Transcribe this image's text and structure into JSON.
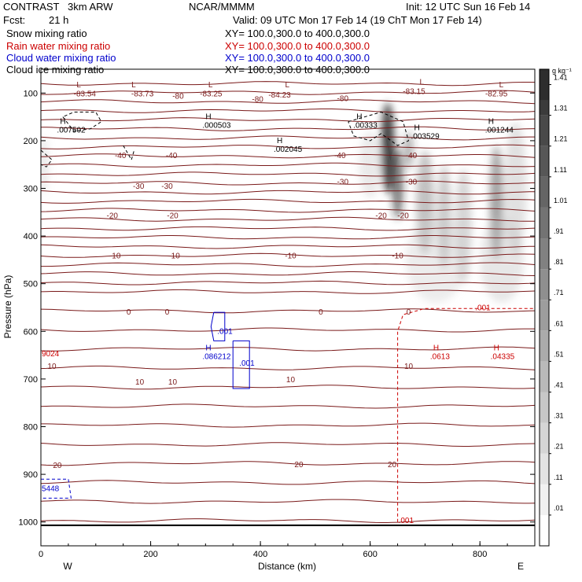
{
  "header": {
    "model": "CONTRAST",
    "model_res": "3km ARW",
    "center": "NCAR/MMMM",
    "init": "Init: 12 UTC Sun 16 Feb 14",
    "fcst_label": "Fcst:",
    "fcst_value": "21 h",
    "valid": "Valid: 09 UTC Mon 17 Feb 14 (19 ChT Mon 17 Feb 14)",
    "fields": [
      {
        "name": "Snow mixing ratio",
        "color": "#000000",
        "xy": "XY=  100.0,300.0 to 400.0,300.0"
      },
      {
        "name": "Rain water mixing ratio",
        "color": "#cc0000",
        "xy": "XY=  100.0,300.0 to 400.0,300.0"
      },
      {
        "name": "Cloud water mixing ratio",
        "color": "#0000cc",
        "xy": "XY=  100.0,300.0 to 400.0,300.0"
      },
      {
        "name": "Cloud ice mixing ratio",
        "color": "#000000",
        "xy": "XY=  100.0,300.0 to 400.0,300.0"
      }
    ]
  },
  "chart_data": {
    "type": "heatmap",
    "xlabel": "Distance (km)",
    "ylabel": "Pressure (hPa)",
    "xlim": [
      0,
      900
    ],
    "ylim": [
      1050,
      50
    ],
    "x_ticks": [
      0,
      200,
      400,
      600,
      800
    ],
    "y_ticks": [
      100,
      200,
      300,
      400,
      500,
      600,
      700,
      800,
      900,
      1000
    ],
    "side_labels": {
      "left": "W",
      "right": "E"
    },
    "colorbar": {
      "unit": "g kg⁻¹",
      "levels": [
        0.01,
        0.11,
        0.21,
        0.31,
        0.41,
        0.51,
        0.61,
        0.71,
        0.81,
        0.91,
        1.01,
        1.11,
        1.21,
        1.31,
        1.41
      ],
      "labels": [
        ".01",
        ".11",
        ".21",
        ".31",
        ".41",
        ".51",
        ".61",
        ".71",
        ".81",
        ".91",
        "1.01",
        "1.11",
        "1.21",
        "1.31",
        "1.41"
      ]
    },
    "colors": {
      "temperature": "#7a1a1a",
      "snow": "#000000",
      "rain": "#cc0000",
      "cloud_water": "#0000cc"
    },
    "temperature_contours": [
      {
        "p": 100,
        "label": "-83.54",
        "x": 80
      },
      {
        "p": 100,
        "label": "-83.73",
        "x": 185
      },
      {
        "p": 105,
        "label": "-80",
        "x": 250
      },
      {
        "p": 100,
        "label": "-83.25",
        "x": 310
      },
      {
        "p": 112,
        "label": "-80",
        "x": 395
      },
      {
        "p": 103,
        "label": "-84.23",
        "x": 435
      },
      {
        "p": 110,
        "label": "-80",
        "x": 550
      },
      {
        "p": 95,
        "label": "-83.15",
        "x": 680
      },
      {
        "p": 100,
        "label": "-82.95",
        "x": 830
      },
      {
        "p": 230,
        "label": "-40",
        "x": 145
      },
      {
        "p": 230,
        "label": "-40",
        "x": 238
      },
      {
        "p": 230,
        "label": "-40",
        "x": 545
      },
      {
        "p": 230,
        "label": "-40",
        "x": 675
      },
      {
        "p": 294,
        "label": "-30",
        "x": 178
      },
      {
        "p": 294,
        "label": "-30",
        "x": 230
      },
      {
        "p": 285,
        "label": "-30",
        "x": 550
      },
      {
        "p": 285,
        "label": "-30",
        "x": 675
      },
      {
        "p": 356,
        "label": "-20",
        "x": 130
      },
      {
        "p": 356,
        "label": "-20",
        "x": 240
      },
      {
        "p": 356,
        "label": "-20",
        "x": 620
      },
      {
        "p": 356,
        "label": "-20",
        "x": 660
      },
      {
        "p": 440,
        "label": "-10",
        "x": 135
      },
      {
        "p": 440,
        "label": "-10",
        "x": 243
      },
      {
        "p": 440,
        "label": "-10",
        "x": 455
      },
      {
        "p": 440,
        "label": "-10",
        "x": 650
      },
      {
        "p": 558,
        "label": "0",
        "x": 160
      },
      {
        "p": 558,
        "label": "0",
        "x": 230
      },
      {
        "p": 558,
        "label": "0",
        "x": 510
      },
      {
        "p": 558,
        "label": "0",
        "x": 670
      },
      {
        "p": 672,
        "label": "10",
        "x": 20
      },
      {
        "p": 705,
        "label": "10",
        "x": 180
      },
      {
        "p": 705,
        "label": "10",
        "x": 240
      },
      {
        "p": 700,
        "label": "10",
        "x": 455
      },
      {
        "p": 672,
        "label": "10",
        "x": 670
      },
      {
        "p": 880,
        "label": "20",
        "x": 30
      },
      {
        "p": 878,
        "label": "20",
        "x": 470
      },
      {
        "p": 878,
        "label": "20",
        "x": 640
      }
    ],
    "extrema": [
      {
        "kind": "L",
        "x": 65,
        "p": 88,
        "value": "",
        "color": "#7a1a1a"
      },
      {
        "kind": "L",
        "x": 165,
        "p": 88,
        "value": "",
        "color": "#7a1a1a"
      },
      {
        "kind": "L",
        "x": 305,
        "p": 88,
        "value": "",
        "color": "#7a1a1a"
      },
      {
        "kind": "L",
        "x": 445,
        "p": 88,
        "value": "",
        "color": "#7a1a1a"
      },
      {
        "kind": "L",
        "x": 690,
        "p": 82,
        "value": "",
        "color": "#7a1a1a"
      },
      {
        "kind": "L",
        "x": 835,
        "p": 88,
        "value": "",
        "color": "#7a1a1a"
      },
      {
        "kind": "H",
        "x": 35,
        "p": 165,
        "value": ".007502",
        "color": "#000000"
      },
      {
        "kind": "H",
        "x": 300,
        "p": 155,
        "value": ".000503",
        "color": "#000000"
      },
      {
        "kind": "H",
        "x": 430,
        "p": 205,
        "value": ".002045",
        "color": "#000000"
      },
      {
        "kind": "H",
        "x": 575,
        "p": 155,
        "value": ".00333",
        "color": "#000000"
      },
      {
        "kind": "H",
        "x": 680,
        "p": 178,
        "value": ".003529",
        "color": "#000000"
      },
      {
        "kind": "H",
        "x": 815,
        "p": 165,
        "value": ".001244",
        "color": "#000000"
      },
      {
        "kind": "H",
        "x": 300,
        "p": 640,
        "value": ".086212",
        "color": "#0000cc"
      },
      {
        "kind": "H",
        "x": 715,
        "p": 640,
        "value": ".0613",
        "color": "#cc0000"
      },
      {
        "kind": "H",
        "x": 825,
        "p": 640,
        "value": ".04335",
        "color": "#cc0000"
      }
    ],
    "misc_labels": [
      {
        "text": "9024",
        "x": 0,
        "p": 652,
        "color": "#cc0000"
      },
      {
        "text": "5448",
        "x": 0,
        "p": 935,
        "color": "#0000cc"
      },
      {
        "text": ".001",
        "x": 320,
        "p": 605,
        "color": "#0000cc"
      },
      {
        "text": ".001",
        "x": 360,
        "p": 672,
        "color": "#0000cc"
      },
      {
        "text": ".001",
        "x": 790,
        "p": 556,
        "color": "#cc0000"
      },
      {
        "text": ".001",
        "x": 650,
        "p": 1002,
        "color": "#cc0000"
      }
    ]
  }
}
